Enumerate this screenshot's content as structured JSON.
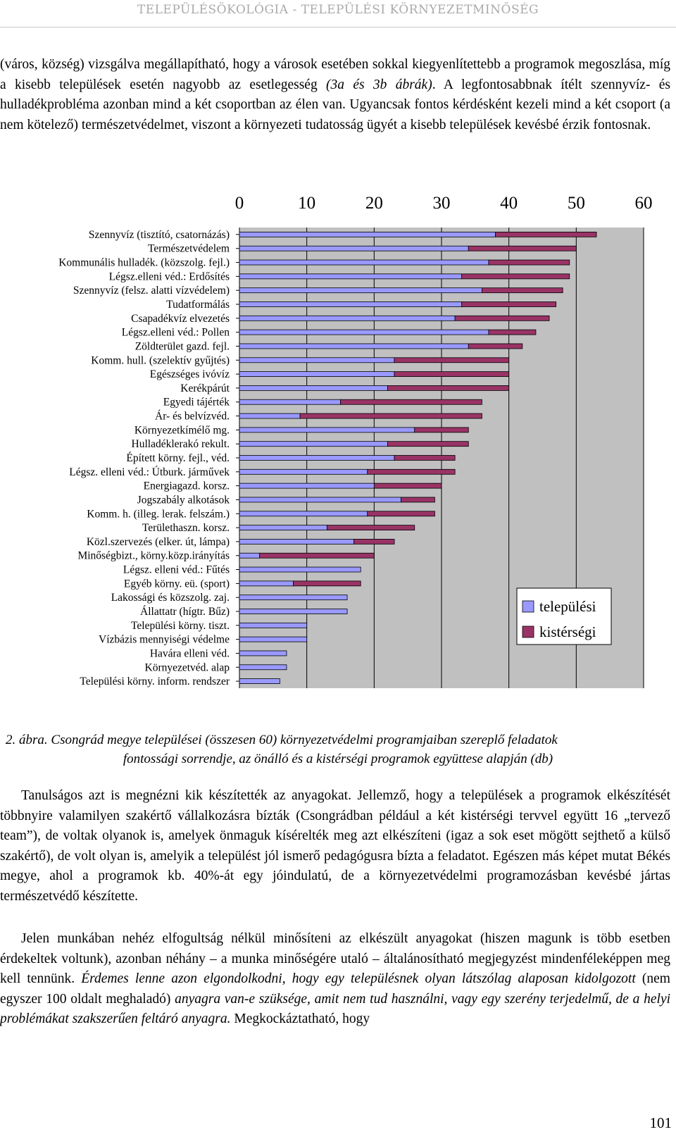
{
  "header": {
    "running_title": "TELEPÜLÉSÖKOLÓGIA - TELEPÜLÉSI KÖRNYEZETMINŐSÉG"
  },
  "paragraph1": {
    "part1": "(város, község) vizsgálva megállapítható, hogy a városok esetében sokkal kiegyenlítettebb a programok megoszlása, míg a kisebb települések esetén nagyobb az esetlegesség ",
    "part2_italic": "(3a és 3b ábrák)",
    "part3": ". A legfontosabbnak ítélt szennyvíz- és hulladékprobléma azonban mind a két csoportban az élen van. Ugyancsak fontos kérdésként kezeli mind a két csoport (a nem kötelező) természetvédelmet, viszont a környezeti tudatosság ügyét a kisebb települések kevésbé érzik fontosnak."
  },
  "chart_data": {
    "type": "bar",
    "stacked": true,
    "orientation": "horizontal",
    "xlim": [
      0,
      60
    ],
    "xticks": [
      "0",
      "10",
      "20",
      "30",
      "40",
      "50",
      "60"
    ],
    "legend_position": "right",
    "colors": {
      "települési": "#9999ff",
      "kistérségi": "#993366",
      "plot_bg": "#c0c0c0"
    },
    "categories": [
      "Szennyvíz (tisztító, csatornázás)",
      "Természetvédelem",
      "Kommunális hulladék. (közszolg. fejl.)",
      "Légsz.elleni véd.: Erdősítés",
      "Szennyvíz (felsz. alatti vízvédelem)",
      "Tudatformálás",
      "Csapadékvíz elvezetés",
      "Légsz.elleni véd.: Pollen",
      "Zöldterület gazd. fejl.",
      "Komm. hull. (szelektív gyűjtés)",
      "Egészséges ivóvíz",
      "Kerékpárút",
      "Egyedi tájérték",
      "Ár- és belvízvéd.",
      "Környezetkímélő mg.",
      "Hulladéklerakó rekult.",
      "Épített körny. fejl., véd.",
      "Légsz. elleni véd.: Útburk. járművek",
      "Energiagazd. korsz.",
      "Jogszabály alkotások",
      "Komm. h. (illeg. lerak. felszám.)",
      "Területhaszn. korsz.",
      "Közl.szervezés (elker. út, lámpa)",
      "Minőségbizt., körny.közp.irányítás",
      "Légsz. elleni véd.: Fűtés",
      "Egyéb körny. eü. (sport)",
      "Lakossági és közszolg. zaj.",
      "Állattatr (hígtr. Bűz)",
      "Települési körny. tiszt.",
      "Vízbázis mennyiségi védelme",
      "Havára elleni véd.",
      "Környezetvéd. alap",
      "Települési körny. inform. rendszer"
    ],
    "series": [
      {
        "name": "települési",
        "values": [
          38,
          34,
          37,
          33,
          36,
          33,
          32,
          37,
          34,
          23,
          23,
          22,
          15,
          9,
          26,
          22,
          23,
          19,
          20,
          24,
          19,
          13,
          17,
          3,
          18,
          8,
          16,
          16,
          10,
          10,
          7,
          7,
          6
        ]
      },
      {
        "name": "kistérségi",
        "values": [
          15,
          16,
          12,
          16,
          12,
          14,
          14,
          7,
          8,
          17,
          17,
          18,
          21,
          27,
          8,
          12,
          9,
          13,
          10,
          5,
          10,
          13,
          6,
          17,
          0,
          10,
          0,
          0,
          0,
          0,
          0,
          0,
          0
        ]
      }
    ]
  },
  "caption": {
    "line1": "2. ábra. Csongrád megye települései (összesen 60) környezetvédelmi programjaiban szereplő feladatok",
    "line2": "fontossági sorrendje, az önálló és a kistérségi programok együttese alapján (db)"
  },
  "paragraph2": "Tanulságos azt is megnézni kik készítették az anyagokat. Jellemző, hogy a települések a programok elkészítését többnyire valamilyen szakértő vállalkozásra bízták (Csongrádban például a két kistérségi tervvel együtt 16 „tervező team”), de voltak olyanok is, amelyek önmaguk kísérelték meg azt elkészíteni (igaz a sok eset mögött sejthető a külső szakértő), de volt olyan is, amelyik a települést jól ismerő pedagógusra bízta a feladatot. Egészen más képet mutat Békés megye, ahol a programok kb. 40%-át egy jóindulatú, de a környezetvédelmi programozásban kevésbé jártas természetvédő készítette.",
  "paragraph3": {
    "part1": "Jelen munkában nehéz elfogultság nélkül minősíteni az elkészült anyagokat (hiszen magunk is több esetben érdekeltek voltunk), azonban néhány – a munka minőségére utaló – általánosítható megjegyzést mindenféleképpen meg kell tennünk. ",
    "part2_italic": "Érdemes lenne azon elgondolkodni, hogy egy településnek olyan látszólag alaposan kidolgozott",
    "part3": " (nem egyszer 100 oldalt meghaladó) ",
    "part4_italic": "anyagra van-e szüksége, amit nem tud használni, vagy egy szerény terjedelmű, de a helyi problémákat szakszerűen feltáró anyagra.",
    "part5": " Megkockáztatható, hogy"
  },
  "page_number": "101"
}
